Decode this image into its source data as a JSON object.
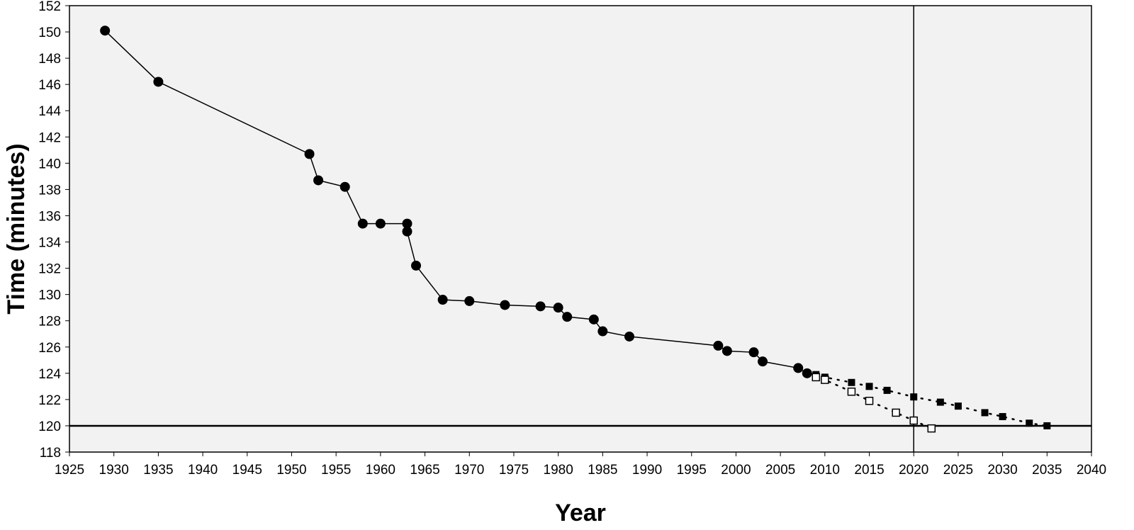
{
  "chart_data": {
    "type": "scatter",
    "title": "",
    "xlabel": "Year",
    "ylabel": "Time (minutes)",
    "xlim": [
      1925,
      2040
    ],
    "ylim": [
      118,
      152
    ],
    "xticks": [
      1925,
      1930,
      1935,
      1940,
      1945,
      1950,
      1955,
      1960,
      1965,
      1970,
      1975,
      1980,
      1985,
      1990,
      1995,
      2000,
      2005,
      2010,
      2015,
      2020,
      2025,
      2030,
      2035,
      2040
    ],
    "yticks": [
      118,
      120,
      122,
      124,
      126,
      128,
      130,
      132,
      134,
      136,
      138,
      140,
      142,
      144,
      146,
      148,
      150,
      152
    ],
    "grid": false,
    "plot_background": "#f2f2f2",
    "reference_lines": {
      "horizontal_y": 120,
      "vertical_x": 2020
    },
    "series": [
      {
        "marker": "filled-circle",
        "line": "solid",
        "color": "#000000",
        "points": [
          [
            1929,
            150.1
          ],
          [
            1935,
            146.2
          ],
          [
            1952,
            140.7
          ],
          [
            1953,
            138.7
          ],
          [
            1956,
            138.2
          ],
          [
            1958,
            135.4
          ],
          [
            1960,
            135.4
          ],
          [
            1963,
            135.4
          ],
          [
            1963,
            134.8
          ],
          [
            1964,
            132.2
          ],
          [
            1967,
            129.6
          ],
          [
            1970,
            129.5
          ],
          [
            1974,
            129.2
          ],
          [
            1978,
            129.1
          ],
          [
            1980,
            129.0
          ],
          [
            1981,
            128.3
          ],
          [
            1984,
            128.1
          ],
          [
            1985,
            127.2
          ],
          [
            1988,
            126.8
          ],
          [
            1998,
            126.1
          ],
          [
            1999,
            125.7
          ],
          [
            2002,
            125.6
          ],
          [
            2003,
            124.9
          ],
          [
            2007,
            124.4
          ],
          [
            2008,
            124.0
          ]
        ]
      },
      {
        "marker": "filled-square",
        "line": "dotted",
        "color": "#000000",
        "points": [
          [
            2008,
            124.0
          ],
          [
            2009,
            123.9
          ],
          [
            2010,
            123.7
          ],
          [
            2013,
            123.3
          ],
          [
            2015,
            123.0
          ],
          [
            2017,
            122.7
          ],
          [
            2020,
            122.2
          ],
          [
            2023,
            121.8
          ],
          [
            2025,
            121.5
          ],
          [
            2028,
            121.0
          ],
          [
            2030,
            120.7
          ],
          [
            2033,
            120.2
          ],
          [
            2035,
            120.0
          ]
        ]
      },
      {
        "marker": "open-square",
        "line": "dotted",
        "color": "#000000",
        "points": [
          [
            2008,
            124.0
          ],
          [
            2009,
            123.7
          ],
          [
            2010,
            123.5
          ],
          [
            2013,
            122.6
          ],
          [
            2015,
            121.9
          ],
          [
            2018,
            121.0
          ],
          [
            2020,
            120.4
          ],
          [
            2022,
            119.8
          ]
        ]
      }
    ]
  }
}
